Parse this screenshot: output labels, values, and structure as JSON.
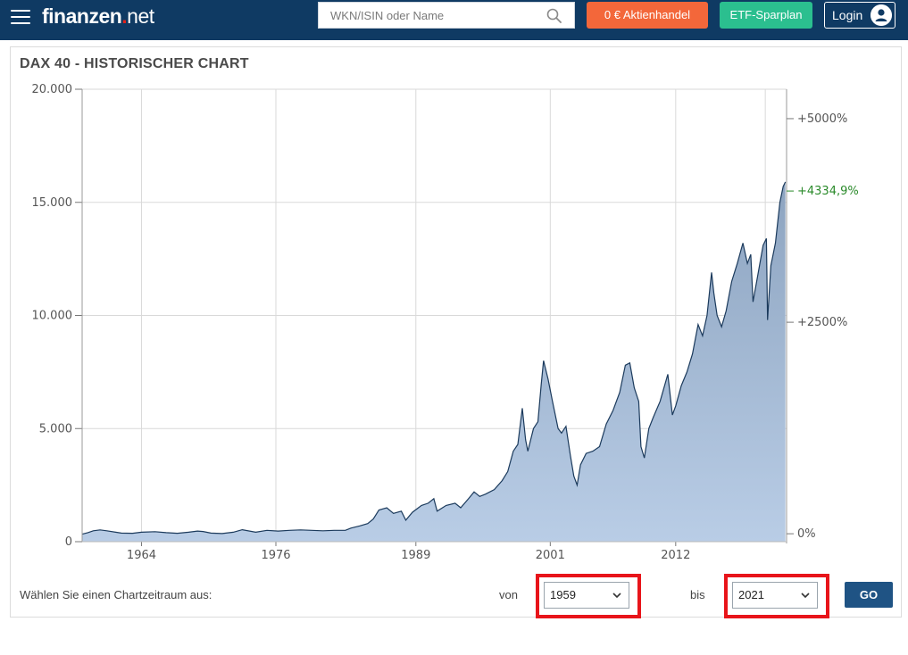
{
  "header": {
    "logo_main": "finanzen",
    "logo_dot": ".",
    "logo_tld": "net",
    "search_placeholder": "WKN/ISIN oder Name",
    "btn_trading": "0 € Aktienhandel",
    "btn_etf": "ETF-Sparplan",
    "btn_login": "Login",
    "colors": {
      "bar": "#0f3a63",
      "trading": "#f3673a",
      "etf": "#2bbf8f"
    }
  },
  "panel": {
    "title": "DAX 40 - HISTORISCHER CHART",
    "range_label": "Wählen Sie einen Chartzeitraum aus:",
    "von_label": "von",
    "bis_label": "bis",
    "from_value": "1959",
    "to_value": "2021",
    "go_label": "GO"
  },
  "chart_data": {
    "type": "area",
    "title": "",
    "xlabel": "",
    "ylabel": "",
    "ylim": [
      0,
      20000
    ],
    "xlim": [
      1959.0,
      2021.9
    ],
    "y_ticks": [
      "20.000",
      "15.000",
      "10.000",
      "5.000",
      "0"
    ],
    "y_tick_values": [
      20000,
      15000,
      10000,
      5000,
      0
    ],
    "x_ticks": [
      "1964",
      "1976",
      "1989",
      "2001",
      "2012"
    ],
    "x_tick_values": [
      1964.3,
      1976.3,
      1988.8,
      2000.8,
      2012.0
    ],
    "secondary_axis_ticks": [
      "+5000%",
      "+2500%",
      "0%"
    ],
    "secondary_axis_values": [
      18700,
      9700,
      350
    ],
    "last_change_label": "+4334,9%",
    "last_change_value": 15500,
    "grid": true,
    "colors": {
      "line": "#1b3a5c",
      "fill_top": "#8da4c0",
      "fill_bottom": "#b9cde6",
      "positive": "#2a8a2a"
    },
    "series": [
      {
        "x": [
          1959.0,
          1959.5,
          1960.0,
          1960.6,
          1961.2,
          1962.0,
          1962.5,
          1963.5,
          1964.3,
          1965.5,
          1966.5,
          1967.5,
          1968.5,
          1969.3,
          1969.8,
          1970.5,
          1971.5,
          1972.5,
          1973.3,
          1974.5,
          1975.5,
          1976.5,
          1977.5,
          1978.5,
          1979.5,
          1980.5,
          1981.5,
          1982.5,
          1983.0,
          1983.8,
          1984.5,
          1985.0,
          1985.5,
          1986.2,
          1986.8,
          1987.5,
          1987.9,
          1988.5,
          1989.3,
          1989.9,
          1990.4,
          1990.7,
          1991.5,
          1992.3,
          1992.8,
          1993.5,
          1994.0,
          1994.5,
          1995.0,
          1995.8,
          1996.5,
          1997.0,
          1997.5,
          1997.9,
          1998.3,
          1998.6,
          1998.8,
          1999.3,
          1999.7,
          2000.0,
          2000.2,
          2000.6,
          2001.0,
          2001.5,
          2001.8,
          2002.2,
          2002.6,
          2002.9,
          2003.2,
          2003.5,
          2004.0,
          2004.6,
          2005.2,
          2005.8,
          2006.4,
          2007.0,
          2007.5,
          2007.9,
          2008.3,
          2008.7,
          2008.9,
          2009.2,
          2009.6,
          2010.0,
          2010.6,
          2011.3,
          2011.7,
          2012.0,
          2012.5,
          2013.0,
          2013.5,
          2014.0,
          2014.4,
          2014.8,
          2015.2,
          2015.4,
          2015.7,
          2016.1,
          2016.5,
          2017.0,
          2017.5,
          2018.0,
          2018.4,
          2018.7,
          2018.9,
          2019.3,
          2019.8,
          2020.1,
          2020.2,
          2020.5,
          2020.9,
          2021.3,
          2021.6,
          2021.8
        ],
        "y": [
          330,
          400,
          480,
          520,
          480,
          420,
          380,
          370,
          420,
          440,
          400,
          370,
          420,
          470,
          450,
          380,
          360,
          420,
          530,
          420,
          500,
          470,
          500,
          520,
          500,
          480,
          500,
          500,
          600,
          700,
          800,
          1000,
          1400,
          1500,
          1250,
          1350,
          950,
          1300,
          1600,
          1700,
          1900,
          1350,
          1600,
          1700,
          1500,
          1900,
          2200,
          2000,
          2100,
          2300,
          2700,
          3100,
          4000,
          4300,
          5900,
          4500,
          4000,
          5000,
          5300,
          7000,
          8000,
          7200,
          6200,
          5000,
          4800,
          5100,
          3800,
          2900,
          2500,
          3400,
          3900,
          4000,
          4200,
          5200,
          5800,
          6600,
          7800,
          7900,
          6800,
          6200,
          4200,
          3700,
          5000,
          5500,
          6200,
          7400,
          5600,
          6000,
          6900,
          7500,
          8300,
          9600,
          9100,
          10000,
          11900,
          11000,
          10000,
          9500,
          10200,
          11500,
          12300,
          13200,
          12300,
          12700,
          10600,
          11700,
          13100,
          13400,
          9800,
          12200,
          13200,
          15000,
          15700,
          15900
        ]
      }
    ]
  }
}
